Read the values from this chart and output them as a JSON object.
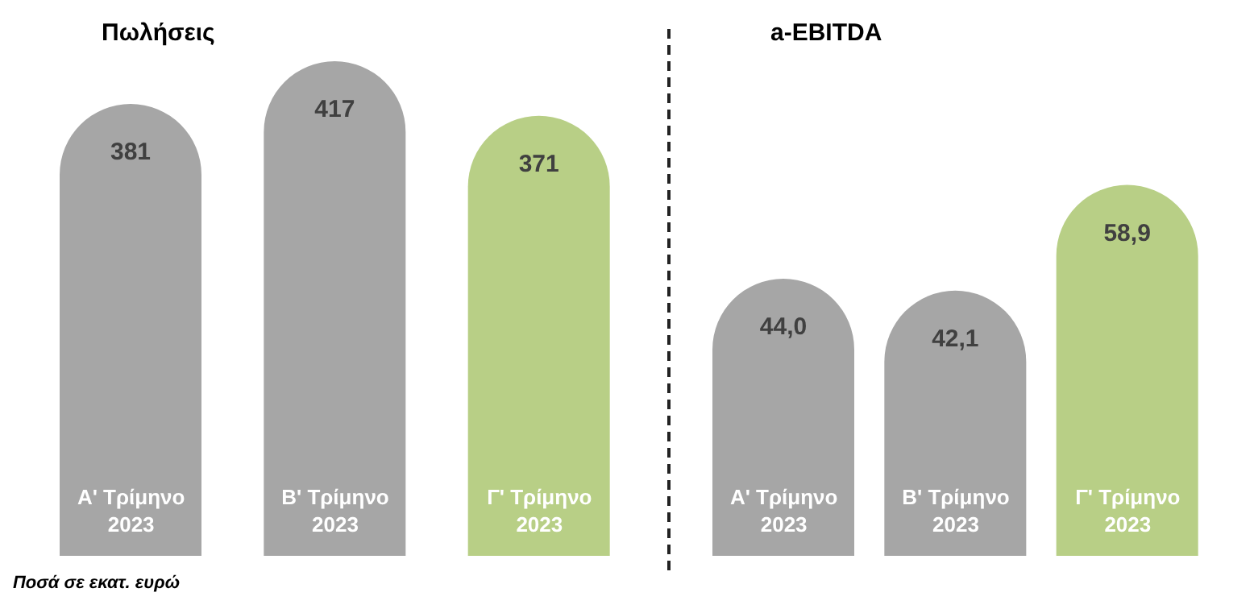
{
  "chart_data": [
    {
      "type": "bar",
      "title": "Πωλήσεις",
      "categories": [
        "Α' Τρίμηνο 2023",
        "Β' Τρίμηνο 2023",
        "Γ' Τρίμηνο 2023"
      ],
      "values": [
        381,
        417,
        371
      ],
      "colors": [
        "#a6a6a6",
        "#a6a6a6",
        "#b8cf86"
      ],
      "data_labels": true,
      "annotations": [
        "Ποσά σε εκατ. ευρώ"
      ]
    },
    {
      "type": "bar",
      "title": "a-EBITDA",
      "categories": [
        "Α' Τρίμηνο 2023",
        "Β' Τρίμηνο 2023",
        "Γ' Τρίμηνο 2023"
      ],
      "values": [
        44.0,
        42.1,
        58.9
      ],
      "colors": [
        "#a6a6a6",
        "#a6a6a6",
        "#b8cf86"
      ],
      "value_labels": [
        "44,0",
        "42,1",
        "58,9"
      ]
    }
  ]
}
